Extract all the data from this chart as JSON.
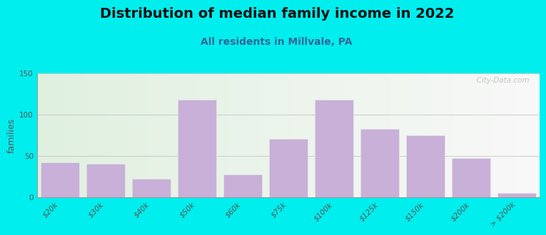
{
  "title": "Distribution of median family income in 2022",
  "subtitle": "All residents in Millvale, PA",
  "ylabel": "families",
  "categories": [
    "$20k",
    "$30k",
    "$40k",
    "$50k",
    "$60k",
    "$75k",
    "$100k",
    "$125k",
    "$150k",
    "$200k",
    "> $200k"
  ],
  "values": [
    42,
    40,
    22,
    118,
    27,
    70,
    118,
    82,
    75,
    47,
    5
  ],
  "bar_color": "#c8b0d8",
  "bar_edgecolor": "#e8e8e8",
  "background_color": "#00eeee",
  "ylim": [
    0,
    150
  ],
  "yticks": [
    0,
    50,
    100,
    150
  ],
  "watermark": "  City-Data.com",
  "title_fontsize": 14,
  "subtitle_fontsize": 10,
  "ylabel_fontsize": 9,
  "tick_fontsize": 7.5
}
